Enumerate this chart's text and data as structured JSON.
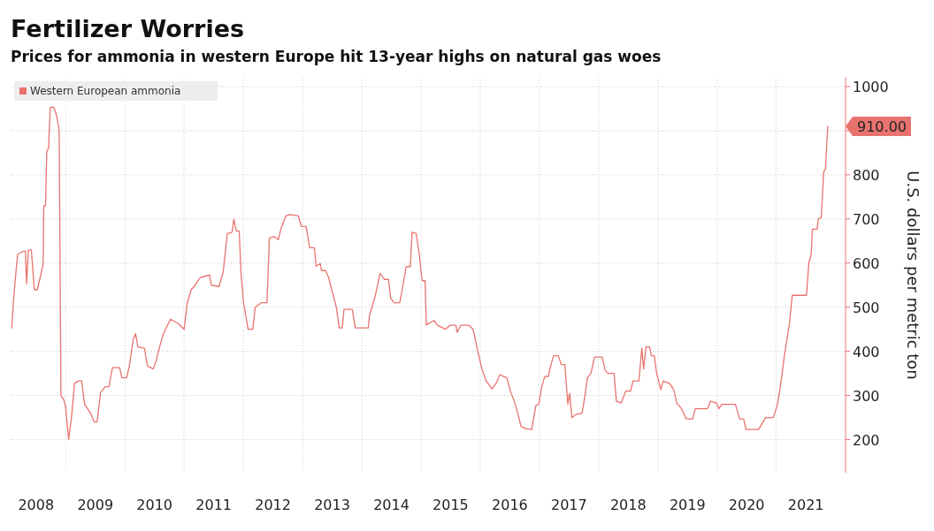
{
  "chart_data": {
    "type": "line",
    "title": "Fertilizer Worries",
    "subtitle": "Prices for ammonia in western Europe hit 13-year highs on natural gas woes",
    "ylabel": "U.S. dollars per metric ton",
    "series": [
      {
        "name": "Western European ammonia",
        "color": "#e8736e",
        "x": [
          2008.09,
          2008.11,
          2008.16,
          2008.19,
          2008.29,
          2008.32,
          2008.34,
          2008.37,
          2008.42,
          2008.47,
          2008.52,
          2008.58,
          2008.62,
          2008.63,
          2008.66,
          2008.68,
          2008.71,
          2008.74,
          2008.8,
          2008.85,
          2008.89,
          2008.92,
          2008.97,
          2009.0,
          2009.05,
          2009.1,
          2009.15,
          2009.21,
          2009.27,
          2009.32,
          2009.42,
          2009.48,
          2009.53,
          2009.59,
          2009.67,
          2009.73,
          2009.79,
          2009.91,
          2009.95,
          2010.03,
          2010.08,
          2010.14,
          2010.18,
          2010.22,
          2010.33,
          2010.38,
          2010.48,
          2010.53,
          2010.58,
          2010.65,
          2010.77,
          2010.9,
          2011.0,
          2011.05,
          2011.12,
          2011.17,
          2011.27,
          2011.43,
          2011.46,
          2011.59,
          2011.66,
          2011.73,
          2011.81,
          2011.84,
          2011.88,
          2011.93,
          2011.96,
          2012.0,
          2012.08,
          2012.16,
          2012.2,
          2012.3,
          2012.4,
          2012.44,
          2012.52,
          2012.59,
          2012.64,
          2012.72,
          2012.79,
          2012.93,
          2012.98,
          2013.06,
          2013.12,
          2013.2,
          2013.23,
          2013.3,
          2013.32,
          2013.39,
          2013.44,
          2013.57,
          2013.62,
          2013.67,
          2013.7,
          2013.84,
          2013.89,
          2014.11,
          2014.13,
          2014.23,
          2014.31,
          2014.38,
          2014.45,
          2014.49,
          2014.55,
          2014.64,
          2014.67,
          2014.75,
          2014.82,
          2014.85,
          2014.92,
          2014.97,
          2015.02,
          2015.07,
          2015.09,
          2015.22,
          2015.27,
          2015.41,
          2015.49,
          2015.59,
          2015.61,
          2015.67,
          2015.81,
          2015.88,
          2015.96,
          2016.03,
          2016.1,
          2016.2,
          2016.28,
          2016.33,
          2016.45,
          2016.51,
          2016.6,
          2016.69,
          2016.77,
          2016.87,
          2016.94,
          2016.99,
          2017.04,
          2017.09,
          2017.15,
          2017.19,
          2017.24,
          2017.32,
          2017.37,
          2017.43,
          2017.48,
          2017.51,
          2017.55,
          2017.62,
          2017.72,
          2017.77,
          2017.81,
          2017.87,
          2017.93,
          2018.06,
          2018.11,
          2018.16,
          2018.26,
          2018.3,
          2018.38,
          2018.46,
          2018.54,
          2018.58,
          2018.68,
          2018.73,
          2018.76,
          2018.8,
          2018.86,
          2018.89,
          2018.94,
          2018.98,
          2019.05,
          2019.09,
          2019.2,
          2019.27,
          2019.32,
          2019.4,
          2019.48,
          2019.59,
          2019.63,
          2019.69,
          2019.74,
          2019.84,
          2019.89,
          2019.99,
          2020.03,
          2020.08,
          2020.31,
          2020.38,
          2020.45,
          2020.49,
          2020.7,
          2020.82,
          2020.95,
          2021.02,
          2021.07,
          2021.14,
          2021.22,
          2021.27,
          2021.51,
          2021.55,
          2021.59,
          2021.61,
          2021.69,
          2021.71,
          2021.76,
          2021.8,
          2021.83,
          2021.87
        ],
        "values": [
          453,
          500,
          580,
          620,
          627,
          627,
          553,
          630,
          630,
          540,
          540,
          573,
          600,
          730,
          730,
          853,
          860,
          953,
          953,
          933,
          900,
          300,
          290,
          273,
          200,
          253,
          327,
          333,
          333,
          280,
          260,
          240,
          240,
          307,
          320,
          320,
          363,
          363,
          340,
          340,
          370,
          427,
          440,
          410,
          407,
          367,
          360,
          380,
          407,
          440,
          473,
          463,
          450,
          507,
          540,
          547,
          567,
          573,
          550,
          547,
          580,
          667,
          670,
          700,
          673,
          673,
          580,
          513,
          450,
          450,
          500,
          510,
          510,
          657,
          660,
          653,
          680,
          707,
          710,
          707,
          683,
          683,
          635,
          635,
          593,
          599,
          583,
          583,
          567,
          500,
          453,
          453,
          495,
          495,
          453,
          453,
          481,
          527,
          577,
          563,
          563,
          520,
          510,
          510,
          530,
          592,
          592,
          670,
          667,
          620,
          560,
          560,
          460,
          470,
          460,
          450,
          459,
          459,
          443,
          459,
          459,
          450,
          400,
          360,
          333,
          315,
          330,
          347,
          340,
          310,
          277,
          230,
          225,
          223,
          277,
          280,
          320,
          343,
          343,
          367,
          390,
          390,
          370,
          370,
          280,
          305,
          250,
          257,
          260,
          300,
          340,
          350,
          387,
          387,
          357,
          350,
          350,
          287,
          283,
          310,
          310,
          333,
          333,
          407,
          360,
          410,
          410,
          390,
          390,
          350,
          313,
          333,
          327,
          313,
          283,
          270,
          247,
          247,
          270,
          270,
          270,
          270,
          287,
          283,
          270,
          280,
          280,
          247,
          247,
          223,
          223,
          250,
          250,
          280,
          320,
          393,
          460,
          527,
          527,
          600,
          620,
          677,
          677,
          700,
          703,
          807,
          813,
          910
        ]
      }
    ],
    "xlim": [
      2008.07,
      2022.17
    ],
    "xticks": [
      {
        "value": 2008.5,
        "label": "2008"
      },
      {
        "value": 2009,
        "label": null
      },
      {
        "value": 2009.5,
        "label": "2009"
      },
      {
        "value": 2010,
        "label": null
      },
      {
        "value": 2010.5,
        "label": "2010"
      },
      {
        "value": 2011,
        "label": null
      },
      {
        "value": 2011.5,
        "label": "2011"
      },
      {
        "value": 2012,
        "label": null
      },
      {
        "value": 2012.5,
        "label": "2012"
      },
      {
        "value": 2013,
        "label": null
      },
      {
        "value": 2013.5,
        "label": "2013"
      },
      {
        "value": 2014,
        "label": null
      },
      {
        "value": 2014.5,
        "label": "2014"
      },
      {
        "value": 2015,
        "label": null
      },
      {
        "value": 2015.5,
        "label": "2015"
      },
      {
        "value": 2016,
        "label": null
      },
      {
        "value": 2016.5,
        "label": "2016"
      },
      {
        "value": 2017,
        "label": null
      },
      {
        "value": 2017.5,
        "label": "2017"
      },
      {
        "value": 2018,
        "label": null
      },
      {
        "value": 2018.5,
        "label": "2018"
      },
      {
        "value": 2019,
        "label": null
      },
      {
        "value": 2019.5,
        "label": "2019"
      },
      {
        "value": 2020,
        "label": null
      },
      {
        "value": 2020.5,
        "label": "2020"
      },
      {
        "value": 2021,
        "label": null
      },
      {
        "value": 2021.5,
        "label": "2021"
      }
    ],
    "ylim": [
      125,
      1020
    ],
    "yticks": [
      200,
      300,
      400,
      500,
      600,
      700,
      800,
      {
        "value": 900,
        "label": null
      },
      1000
    ],
    "grid": true,
    "legend": "top left",
    "annotations": [
      "910.00"
    ]
  }
}
